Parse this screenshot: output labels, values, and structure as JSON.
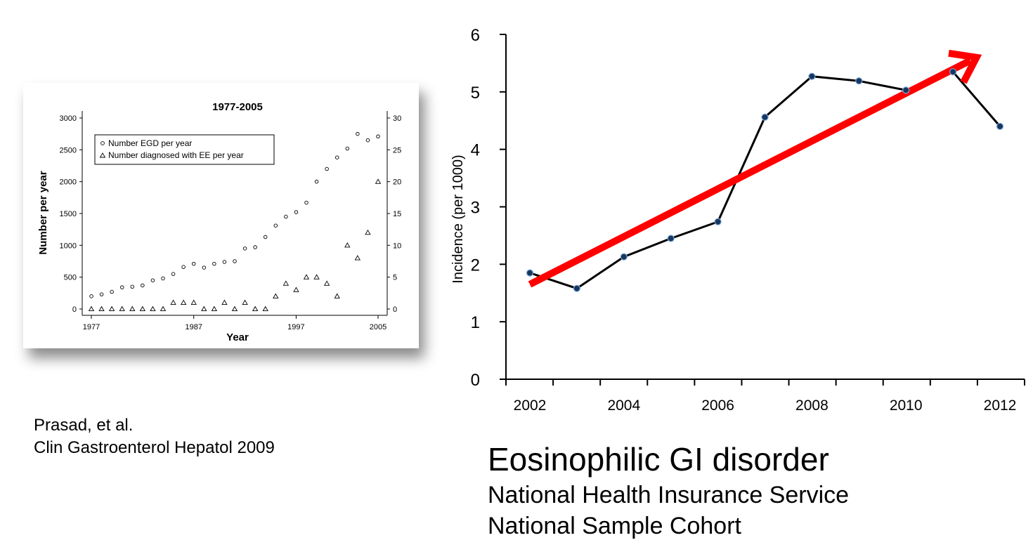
{
  "citation": {
    "line1": "Prasad, et al.",
    "line2": "Clin Gastroenterol Hepatol 2009"
  },
  "caption": {
    "title": "Eosinophilic GI disorder",
    "line1": "National Health Insurance Service",
    "line2": "National Sample Cohort"
  },
  "chart_data": [
    {
      "type": "scatter",
      "title": "1977-2005",
      "xlabel": "Year",
      "ylabel": "Number per year",
      "x_ticks": [
        "1977",
        "1987",
        "1997",
        "2005"
      ],
      "y_ticks_left": [
        "0",
        "500",
        "1000",
        "1500",
        "2000",
        "2500",
        "3000"
      ],
      "y_ticks_right": [
        "0",
        "5",
        "10",
        "15",
        "20",
        "25",
        "30"
      ],
      "xlim": [
        1977,
        2005
      ],
      "ylim_left": [
        0,
        3000
      ],
      "ylim_right": [
        0,
        30
      ],
      "legend_position": "top-left",
      "series": [
        {
          "name": "Number EGD per year",
          "marker": "circle",
          "axis": "left",
          "x": [
            1977,
            1978,
            1979,
            1980,
            1981,
            1982,
            1983,
            1984,
            1985,
            1986,
            1987,
            1988,
            1989,
            1990,
            1991,
            1992,
            1993,
            1994,
            1995,
            1996,
            1997,
            1998,
            1999,
            2000,
            2001,
            2002,
            2003,
            2004,
            2005
          ],
          "values": [
            200,
            230,
            270,
            340,
            350,
            370,
            450,
            480,
            550,
            660,
            710,
            650,
            710,
            740,
            750,
            950,
            970,
            1130,
            1310,
            1450,
            1520,
            1670,
            2000,
            2200,
            2380,
            2520,
            2750,
            2650,
            2710
          ]
        },
        {
          "name": "Number diagnosed with EE per year",
          "marker": "triangle",
          "axis": "right",
          "x": [
            1977,
            1978,
            1979,
            1980,
            1981,
            1982,
            1983,
            1984,
            1985,
            1986,
            1987,
            1988,
            1989,
            1990,
            1991,
            1992,
            1993,
            1994,
            1995,
            1996,
            1997,
            1998,
            1999,
            2000,
            2001,
            2002,
            2003,
            2004,
            2005
          ],
          "values": [
            0,
            0,
            0,
            0,
            0,
            0,
            0,
            0,
            1,
            1,
            1,
            0,
            0,
            1,
            0,
            1,
            0,
            0,
            2,
            4,
            3,
            5,
            5,
            4,
            2,
            10,
            8,
            12,
            20
          ]
        }
      ]
    },
    {
      "type": "line",
      "title": "",
      "xlabel": "",
      "ylabel": "Incidence (per 1000)",
      "x_ticks": [
        "2002",
        "2004",
        "2006",
        "2008",
        "2010",
        "2012"
      ],
      "y_ticks": [
        "0",
        "1",
        "2",
        "3",
        "4",
        "5",
        "6"
      ],
      "xlim": [
        2002,
        2012
      ],
      "ylim": [
        0,
        6
      ],
      "line_color": "#000000",
      "marker_color": "#17375e",
      "trend_color": "#ff0000",
      "series": [
        {
          "x": [
            2002,
            2003,
            2004,
            2005,
            2006,
            2007,
            2008,
            2009,
            2010,
            2011,
            2012
          ],
          "values": [
            1.85,
            1.58,
            2.13,
            2.45,
            2.74,
            4.56,
            5.27,
            5.19,
            5.03,
            5.35,
            4.4
          ]
        }
      ],
      "trend": {
        "x": [
          2002,
          2011.5
        ],
        "values": [
          1.65,
          5.6
        ]
      }
    }
  ]
}
